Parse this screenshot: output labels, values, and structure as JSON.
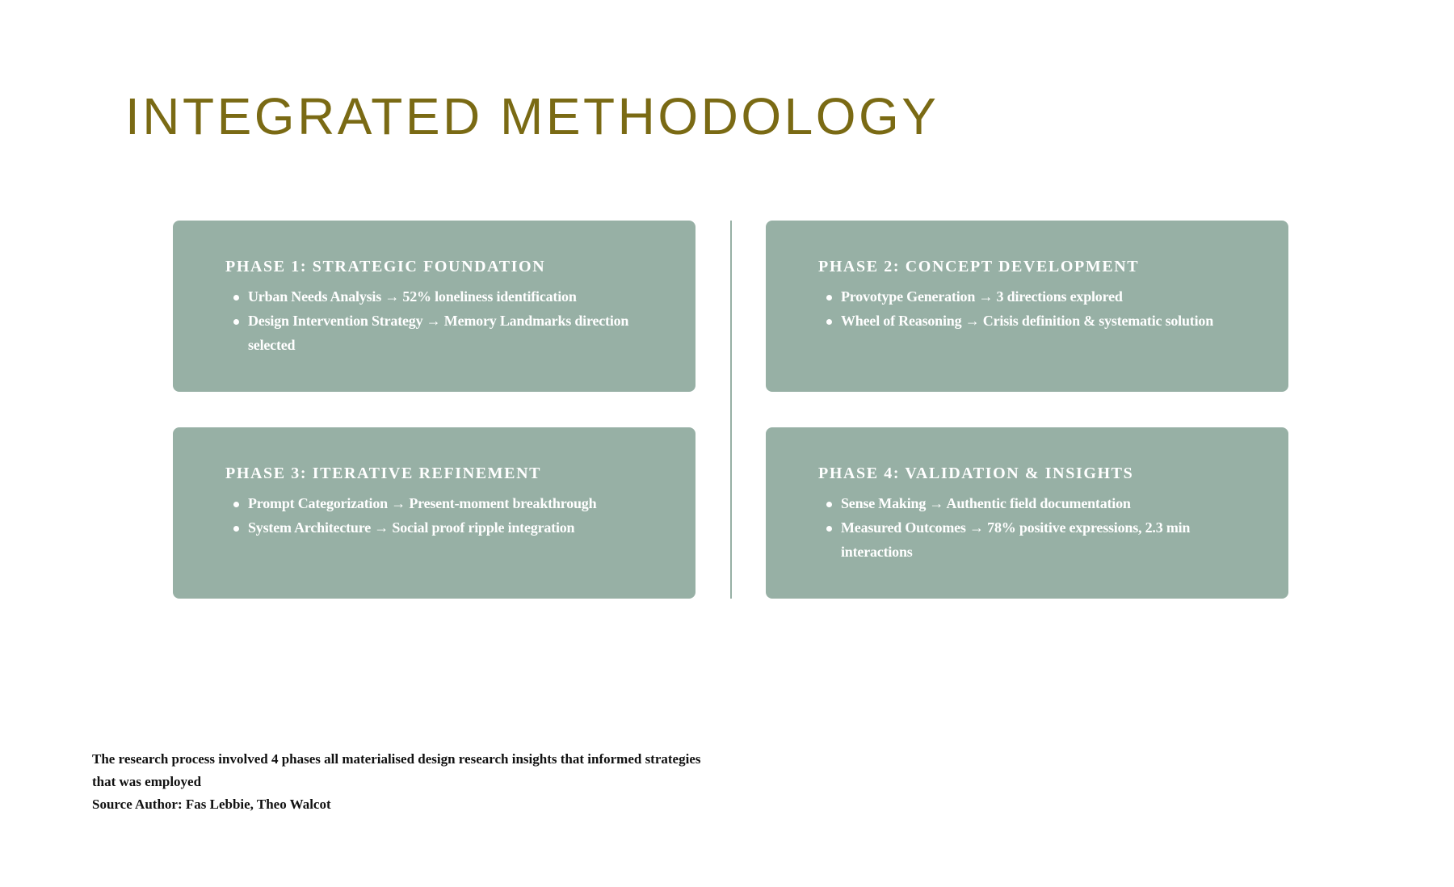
{
  "title": "INTEGRATED METHODOLOGY",
  "colors": {
    "title": "#7a6a14",
    "card": "#97b0a5",
    "text_on_card": "#ffffff"
  },
  "phases": [
    {
      "heading": "PHASE 1: STRATEGIC FOUNDATION",
      "items": [
        "Urban Needs Analysis → 52% loneliness identification",
        "Design Intervention Strategy → Memory Landmarks direction selected"
      ]
    },
    {
      "heading": "PHASE 2: CONCEPT DEVELOPMENT",
      "items": [
        "Provotype Generation → 3 directions explored",
        "Wheel of Reasoning → Crisis definition & systematic solution"
      ]
    },
    {
      "heading": "PHASE 3: ITERATIVE REFINEMENT",
      "items": [
        "Prompt Categorization → Present-moment breakthrough",
        "System Architecture → Social proof ripple integration"
      ]
    },
    {
      "heading": "PHASE 4: VALIDATION & INSIGHTS",
      "items": [
        "Sense Making → Authentic field documentation",
        "Measured Outcomes → 78% positive expressions, 2.3 min interactions"
      ]
    }
  ],
  "footer": {
    "description": "The research process involved  4 phases all materialised design research insights that informed strategies that was employed",
    "source": "Source Author: Fas Lebbie, Theo Walcot"
  }
}
